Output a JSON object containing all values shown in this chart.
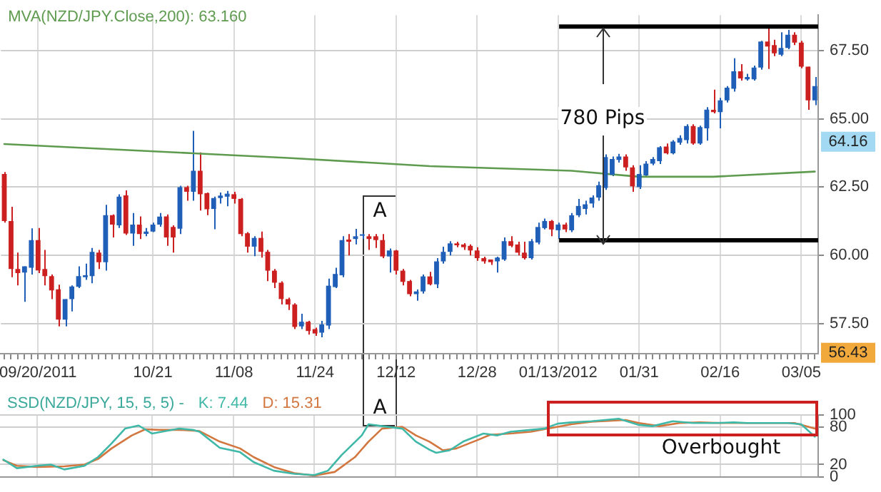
{
  "chart_data": [
    {
      "type": "candlestick",
      "categories": [
        null,
        null,
        null,
        null,
        null,
        "09/20/2011",
        null,
        null,
        null,
        null,
        null,
        null,
        null,
        null,
        null,
        null,
        null,
        null,
        null,
        null,
        null,
        null,
        "10/21",
        null,
        null,
        null,
        null,
        null,
        null,
        null,
        null,
        null,
        null,
        null,
        "11/08",
        null,
        null,
        null,
        null,
        null,
        null,
        null,
        null,
        null,
        null,
        null,
        "11/24",
        null,
        null,
        null,
        null,
        null,
        null,
        null,
        null,
        null,
        null,
        null,
        "12/12",
        null,
        null,
        null,
        null,
        null,
        null,
        null,
        null,
        null,
        null,
        null,
        "12/28",
        null,
        null,
        null,
        null,
        null,
        null,
        null,
        null,
        null,
        null,
        null,
        "01/13/2012",
        null,
        null,
        null,
        null,
        null,
        null,
        null,
        null,
        null,
        null,
        null,
        "01/31",
        null,
        null,
        null,
        null,
        null,
        null,
        null,
        null,
        null,
        null,
        null,
        "02/16",
        null,
        null,
        null,
        null,
        null,
        null,
        null,
        null,
        null,
        null,
        null,
        "03/05",
        null,
        null
      ],
      "ohlc": [
        [
          62.98,
          63.05,
          61.2,
          61.26
        ],
        [
          61.26,
          61.78,
          59.2,
          59.5
        ],
        [
          59.5,
          60.1,
          58.9,
          59.35
        ],
        [
          59.37,
          59.6,
          58.3,
          59.6
        ],
        [
          59.55,
          60.99,
          59.3,
          60.56
        ],
        [
          60.56,
          61.0,
          59.35,
          59.45
        ],
        [
          59.5,
          60.2,
          58.9,
          59.24
        ],
        [
          59.24,
          59.3,
          58.4,
          58.72
        ],
        [
          58.76,
          58.93,
          57.4,
          57.65
        ],
        [
          57.65,
          58.4,
          57.4,
          58.4
        ],
        [
          58.4,
          58.9,
          57.95,
          58.86
        ],
        [
          58.85,
          59.6,
          58.8,
          59.24
        ],
        [
          59.2,
          59.7,
          59.1,
          59.27
        ],
        [
          59.24,
          60.27,
          58.98,
          60.13
        ],
        [
          60.1,
          60.2,
          59.5,
          59.75
        ],
        [
          59.75,
          61.85,
          59.44,
          61.47
        ],
        [
          61.47,
          61.5,
          60.66,
          61.13
        ],
        [
          61.1,
          62.24,
          61.0,
          62.15
        ],
        [
          62.2,
          62.38,
          60.75,
          60.8
        ],
        [
          60.8,
          61.55,
          60.35,
          61.13
        ],
        [
          61.13,
          61.43,
          60.6,
          60.78
        ],
        [
          60.79,
          61.0,
          60.7,
          60.87
        ],
        [
          60.87,
          61.2,
          60.85,
          61.13
        ],
        [
          61.13,
          61.55,
          61.05,
          61.42
        ],
        [
          61.43,
          61.5,
          60.35,
          60.66
        ],
        [
          61.04,
          61.1,
          60.1,
          60.66
        ],
        [
          60.98,
          62.55,
          60.78,
          62.5
        ],
        [
          62.5,
          62.55,
          62.0,
          62.33
        ],
        [
          62.33,
          64.56,
          62.0,
          63.1
        ],
        [
          63.1,
          63.77,
          61.64,
          62.24
        ],
        [
          62.28,
          62.3,
          61.47,
          61.69
        ],
        [
          61.7,
          62.15,
          60.96,
          62.1
        ],
        [
          62.1,
          62.3,
          61.9,
          62.19
        ],
        [
          62.15,
          62.36,
          61.8,
          62.26
        ],
        [
          62.24,
          62.33,
          61.9,
          62.07
        ],
        [
          62.07,
          62.1,
          60.7,
          60.78
        ],
        [
          60.81,
          60.85,
          60.1,
          60.32
        ],
        [
          60.32,
          60.7,
          59.97,
          60.64
        ],
        [
          60.64,
          60.87,
          59.92,
          60.13
        ],
        [
          60.13,
          60.2,
          59.06,
          59.44
        ],
        [
          59.44,
          59.5,
          58.8,
          59.0
        ],
        [
          59.0,
          59.05,
          58.2,
          58.4
        ],
        [
          58.4,
          58.45,
          58.0,
          58.2
        ],
        [
          58.2,
          58.25,
          57.3,
          57.38
        ],
        [
          57.4,
          57.86,
          57.3,
          57.57
        ],
        [
          57.57,
          57.6,
          57.1,
          57.23
        ],
        [
          57.3,
          57.35,
          57.05,
          57.14
        ],
        [
          57.17,
          57.6,
          57.0,
          57.47
        ],
        [
          57.43,
          59.15,
          57.3,
          58.89
        ],
        [
          58.84,
          59.55,
          58.8,
          59.32
        ],
        [
          59.27,
          60.7,
          59.2,
          60.56
        ],
        [
          60.58,
          60.78,
          60.0,
          60.5
        ],
        [
          60.6,
          60.97,
          60.4,
          60.7
        ],
        [
          60.72,
          60.8,
          60.6,
          60.77
        ],
        [
          60.7,
          60.78,
          60.2,
          60.6
        ],
        [
          60.7,
          60.78,
          60.27,
          60.56
        ],
        [
          60.56,
          60.78,
          59.9,
          59.96
        ],
        [
          59.96,
          60.25,
          59.37,
          60.18
        ],
        [
          60.18,
          60.2,
          59.3,
          59.44
        ],
        [
          59.44,
          59.5,
          58.9,
          59.03
        ],
        [
          59.06,
          59.1,
          58.5,
          58.58
        ],
        [
          58.58,
          58.75,
          58.34,
          58.68
        ],
        [
          58.68,
          59.3,
          58.6,
          59.23
        ],
        [
          59.23,
          59.4,
          58.9,
          58.94
        ],
        [
          58.94,
          59.9,
          58.8,
          59.78
        ],
        [
          59.78,
          60.32,
          59.7,
          60.13
        ],
        [
          60.13,
          60.52,
          60.0,
          60.44
        ],
        [
          60.44,
          60.5,
          60.3,
          60.37
        ],
        [
          60.4,
          60.45,
          60.2,
          60.3
        ],
        [
          60.35,
          60.4,
          60.0,
          60.18
        ],
        [
          60.18,
          60.3,
          59.8,
          59.9
        ],
        [
          59.9,
          59.95,
          59.7,
          59.78
        ],
        [
          59.85,
          59.85,
          59.65,
          59.75
        ],
        [
          59.78,
          59.95,
          59.37,
          59.92
        ],
        [
          59.85,
          60.66,
          59.8,
          60.52
        ],
        [
          60.52,
          60.7,
          60.3,
          60.35
        ],
        [
          60.4,
          60.5,
          60.0,
          60.1
        ],
        [
          60.1,
          60.5,
          59.85,
          59.9
        ],
        [
          59.9,
          60.6,
          59.85,
          60.52
        ],
        [
          60.47,
          61.2,
          60.4,
          61.04
        ],
        [
          61.0,
          61.35,
          60.95,
          61.26
        ],
        [
          61.26,
          61.3,
          60.7,
          60.95
        ],
        [
          60.92,
          61.2,
          60.6,
          61.13
        ],
        [
          61.13,
          61.2,
          60.85,
          60.95
        ],
        [
          60.92,
          61.55,
          60.85,
          61.47
        ],
        [
          61.47,
          62.07,
          61.4,
          61.81
        ],
        [
          61.7,
          62.0,
          61.5,
          61.87
        ],
        [
          61.9,
          62.2,
          61.75,
          62.12
        ],
        [
          62.12,
          62.7,
          62.0,
          62.57
        ],
        [
          62.47,
          63.7,
          62.4,
          63.6
        ],
        [
          62.95,
          63.62,
          62.9,
          63.53
        ],
        [
          63.5,
          63.72,
          63.4,
          63.62
        ],
        [
          63.62,
          63.7,
          63.1,
          63.22
        ],
        [
          63.22,
          63.3,
          62.33,
          62.53
        ],
        [
          62.5,
          63.3,
          62.43,
          62.98
        ],
        [
          62.93,
          63.45,
          62.9,
          63.36
        ],
        [
          63.36,
          63.6,
          63.3,
          63.53
        ],
        [
          63.45,
          64.0,
          63.35,
          63.96
        ],
        [
          63.99,
          64.1,
          63.7,
          63.74
        ],
        [
          63.74,
          64.22,
          63.7,
          64.17
        ],
        [
          64.13,
          64.4,
          64.05,
          64.3
        ],
        [
          64.22,
          64.8,
          64.1,
          64.74
        ],
        [
          64.74,
          64.8,
          64.05,
          64.1
        ],
        [
          64.1,
          64.75,
          64.05,
          64.7
        ],
        [
          64.65,
          65.43,
          64.2,
          65.34
        ],
        [
          65.33,
          66.07,
          65.2,
          65.25
        ],
        [
          65.25,
          65.77,
          64.65,
          65.68
        ],
        [
          65.68,
          66.2,
          65.6,
          66.14
        ],
        [
          66.1,
          67.22,
          66.0,
          66.74
        ],
        [
          66.74,
          67.0,
          66.4,
          66.48
        ],
        [
          66.45,
          66.65,
          66.4,
          66.53
        ],
        [
          66.45,
          66.95,
          66.4,
          66.88
        ],
        [
          66.88,
          67.86,
          66.8,
          67.83
        ],
        [
          67.83,
          68.34,
          66.83,
          67.65
        ],
        [
          67.7,
          67.9,
          67.3,
          67.4
        ],
        [
          67.35,
          68.17,
          67.3,
          67.6
        ],
        [
          67.6,
          68.26,
          67.55,
          68.08
        ],
        [
          68.08,
          68.17,
          67.7,
          67.79
        ],
        [
          67.79,
          67.86,
          66.85,
          66.91
        ],
        [
          66.91,
          66.91,
          65.33,
          65.68
        ],
        [
          65.68,
          66.53,
          65.5,
          66.2
        ]
      ],
      "colors": [
        "#cc1f1f",
        "#cc1f1f",
        "#cc1f1f",
        "#1f5fb8",
        "#1f5fb8",
        "#cc1f1f",
        "#cc1f1f",
        "#cc1f1f",
        "#cc1f1f",
        "#1f5fb8",
        "#1f5fb8",
        "#1f5fb8",
        "#1f5fb8",
        "#1f5fb8",
        "#cc1f1f",
        "#1f5fb8",
        "#cc1f1f",
        "#1f5fb8",
        "#cc1f1f",
        "#1f5fb8",
        "#cc1f1f",
        "#1f5fb8",
        "#1f5fb8",
        "#1f5fb8",
        "#cc1f1f",
        "#cc1f1f",
        "#1f5fb8",
        "#cc1f1f",
        "#1f5fb8",
        "#cc1f1f",
        "#cc1f1f",
        "#1f5fb8",
        "#1f5fb8",
        "#1f5fb8",
        "#cc1f1f",
        "#cc1f1f",
        "#cc1f1f",
        "#1f5fb8",
        "#cc1f1f",
        "#cc1f1f",
        "#cc1f1f",
        "#cc1f1f",
        "#cc1f1f",
        "#cc1f1f",
        "#1f5fb8",
        "#cc1f1f",
        "#cc1f1f",
        "#1f5fb8",
        "#1f5fb8",
        "#1f5fb8",
        "#1f5fb8",
        "#cc1f1f",
        "#1f5fb8",
        "#1f5fb8",
        "#cc1f1f",
        "#cc1f1f",
        "#cc1f1f",
        "#1f5fb8",
        "#cc1f1f",
        "#cc1f1f",
        "#cc1f1f",
        "#1f5fb8",
        "#1f5fb8",
        "#cc1f1f",
        "#1f5fb8",
        "#1f5fb8",
        "#1f5fb8",
        "#cc1f1f",
        "#cc1f1f",
        "#cc1f1f",
        "#cc1f1f",
        "#cc1f1f",
        "#cc1f1f",
        "#1f5fb8",
        "#1f5fb8",
        "#cc1f1f",
        "#cc1f1f",
        "#cc1f1f",
        "#1f5fb8",
        "#1f5fb8",
        "#1f5fb8",
        "#cc1f1f",
        "#1f5fb8",
        "#cc1f1f",
        "#1f5fb8",
        "#1f5fb8",
        "#1f5fb8",
        "#1f5fb8",
        "#1f5fb8",
        "#1f5fb8",
        "#1f5fb8",
        "#1f5fb8",
        "#cc1f1f",
        "#cc1f1f",
        "#1f5fb8",
        "#1f5fb8",
        "#1f5fb8",
        "#1f5fb8",
        "#cc1f1f",
        "#1f5fb8",
        "#1f5fb8",
        "#1f5fb8",
        "#cc1f1f",
        "#1f5fb8",
        "#1f5fb8",
        "#cc1f1f",
        "#1f5fb8",
        "#1f5fb8",
        "#1f5fb8",
        "#cc1f1f",
        "#1f5fb8",
        "#1f5fb8",
        "#1f5fb8",
        "#cc1f1f",
        "#cc1f1f",
        "#1f5fb8",
        "#1f5fb8",
        "#cc1f1f",
        "#cc1f1f",
        "#cc1f1f",
        "#1f5fb8"
      ],
      "series": [
        {
          "type": "line",
          "name": "MVA(NZD/JPY.Close,200): 63.160",
          "color": "#5e9b4f",
          "values": [
            64.08,
            null,
            null,
            null,
            null,
            null,
            null,
            null,
            null,
            null,
            null,
            null,
            null,
            null,
            null,
            null,
            null,
            null,
            null,
            null,
            null,
            null,
            null,
            null,
            null,
            null,
            null,
            null,
            63.74,
            null,
            null,
            null,
            null,
            null,
            null,
            null,
            null,
            null,
            null,
            null,
            null,
            null,
            63.57,
            null,
            null,
            null,
            null,
            null,
            null,
            null,
            null,
            null,
            null,
            null,
            null,
            null,
            null,
            null,
            null,
            null,
            null,
            null,
            null,
            63.27,
            null,
            null,
            null,
            null,
            null,
            null,
            null,
            null,
            null,
            null,
            null,
            null,
            null,
            null,
            null,
            null,
            null,
            null,
            null,
            null,
            63.1,
            null,
            null,
            null,
            null,
            null,
            null,
            null,
            null,
            null,
            62.88,
            null,
            null,
            null,
            null,
            null,
            null,
            null,
            null,
            null,
            null,
            62.88,
            null,
            null,
            null,
            null,
            null,
            null,
            null,
            null,
            null,
            null,
            null,
            null,
            null,
            null,
            63.07
          ]
        }
      ],
      "ylim": [
        56.4,
        68.8
      ],
      "yticks": [
        {
          "value": 57.5,
          "label": "57.50"
        },
        {
          "value": 60,
          "label": "60.00"
        },
        {
          "value": 62.5,
          "label": "62.50"
        },
        {
          "value": 65,
          "label": "65.00"
        },
        {
          "value": 67.5,
          "label": "67.50"
        }
      ],
      "grid": true,
      "legend": "top left",
      "ref_lines": [
        {
          "axis": "y",
          "value": 68.38,
          "color": "#000000"
        },
        {
          "axis": "y",
          "value": 60.55,
          "color": "#000000"
        }
      ],
      "annotations": [
        {
          "text": "780 Pips",
          "y": 68.38
        },
        "A",
        {
          "text": "64.16",
          "y": 64.16
        },
        {
          "text": "56.43",
          "y": 56.43
        }
      ]
    },
    {
      "type": "line",
      "title": "SSD(NZD/JPY, 15, 5, 5) -",
      "categories": [
        null,
        null,
        null,
        null,
        null,
        null,
        null,
        null,
        null,
        null,
        null,
        null,
        null,
        null,
        null,
        null,
        null,
        null,
        null,
        null,
        null,
        null,
        null,
        null,
        null,
        null,
        null,
        null,
        null,
        null,
        null,
        null,
        null,
        null,
        null,
        null,
        null,
        null,
        null,
        null,
        null,
        null,
        null,
        null,
        null,
        null,
        null,
        null,
        null,
        null,
        null,
        null,
        null,
        null,
        null,
        null,
        null,
        null,
        null,
        null,
        null,
        null,
        null,
        null,
        null,
        null,
        null,
        null,
        null,
        null,
        null,
        null,
        null,
        null,
        null,
        null,
        null,
        null,
        null,
        null,
        null,
        null,
        null,
        null,
        null,
        null,
        null,
        null,
        null,
        null,
        null,
        null,
        null,
        null,
        null,
        null,
        null,
        null,
        null,
        null,
        null,
        null,
        null,
        null,
        null,
        null,
        null,
        null,
        null,
        null,
        null,
        null,
        null,
        null,
        null,
        null,
        null,
        null,
        null,
        null,
        null
      ],
      "series": [
        {
          "name": "K: 7.44",
          "color": "#3fb8a8",
          "values": [
            28,
            null,
            14,
            null,
            null,
            18,
            null,
            20,
            null,
            12,
            null,
            null,
            18,
            null,
            32,
            null,
            54,
            null,
            78,
            null,
            83,
            null,
            70,
            null,
            74,
            null,
            78,
            null,
            76,
            73,
            null,
            null,
            47,
            null,
            null,
            40,
            null,
            24,
            null,
            null,
            10,
            null,
            null,
            5,
            null,
            null,
            3,
            null,
            10,
            null,
            35,
            null,
            null,
            67,
            85,
            null,
            82,
            null,
            null,
            78,
            null,
            57,
            null,
            44,
            39,
            null,
            43,
            null,
            57,
            null,
            null,
            70,
            null,
            67,
            null,
            73,
            null,
            null,
            76,
            null,
            78,
            null,
            86,
            null,
            88,
            null,
            null,
            90,
            null,
            null,
            null,
            94,
            null,
            null,
            84,
            null,
            82,
            null,
            null,
            90,
            null,
            null,
            87,
            null,
            null,
            87,
            null,
            null,
            88,
            null,
            87,
            null,
            null,
            87,
            null,
            null,
            87,
            null,
            85,
            null,
            65
          ]
        },
        {
          "name": "D: 15.31",
          "color": "#d2773f",
          "values": [
            27,
            null,
            18,
            null,
            null,
            16,
            null,
            null,
            null,
            17,
            null,
            null,
            20,
            null,
            29,
            null,
            46,
            null,
            null,
            67,
            null,
            77,
            null,
            76,
            null,
            null,
            76,
            null,
            null,
            74,
            null,
            null,
            57,
            null,
            null,
            46,
            null,
            32,
            null,
            null,
            16,
            null,
            null,
            6,
            null,
            null,
            2,
            null,
            null,
            8,
            null,
            null,
            32,
            null,
            57,
            null,
            78,
            null,
            null,
            81,
            null,
            67,
            null,
            57,
            50,
            43,
            null,
            46,
            null,
            null,
            59,
            null,
            68,
            null,
            null,
            70,
            null,
            null,
            73,
            null,
            null,
            79,
            null,
            null,
            85,
            null,
            null,
            89,
            null,
            null,
            null,
            null,
            92,
            null,
            87,
            null,
            null,
            82,
            null,
            null,
            87,
            null,
            null,
            88,
            null,
            null,
            87,
            null,
            null,
            null,
            87,
            null,
            null,
            null,
            null,
            87,
            null,
            87,
            null,
            null,
            78
          ]
        }
      ],
      "ylim": [
        0,
        100
      ],
      "yticks": [
        0,
        20,
        80,
        100
      ],
      "grid": true,
      "tick_labels": "y",
      "legend": "top left",
      "annotations": [
        "A",
        "Overbought"
      ]
    }
  ]
}
